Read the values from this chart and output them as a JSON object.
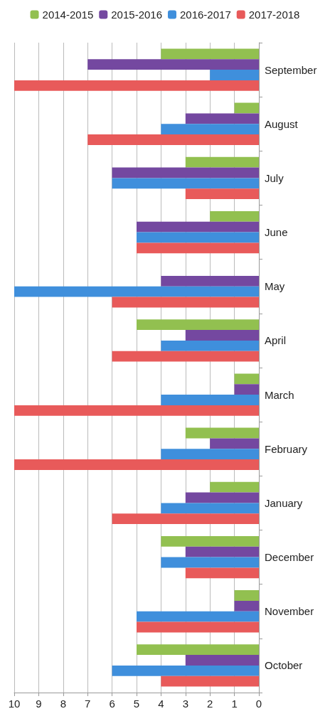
{
  "chart_data": {
    "type": "bar",
    "orientation": "horizontal",
    "categories": [
      "September",
      "August",
      "July",
      "June",
      "May",
      "April",
      "March",
      "February",
      "January",
      "December",
      "November",
      "October"
    ],
    "series": [
      {
        "name": "2014-2015",
        "color": "#92c050",
        "values": [
          4,
          1,
          3,
          2,
          0,
          5,
          1,
          3,
          2,
          4,
          1,
          5
        ]
      },
      {
        "name": "2015-2016",
        "color": "#7448a0",
        "values": [
          7,
          3,
          6,
          5,
          4,
          3,
          1,
          2,
          3,
          3,
          1,
          3
        ]
      },
      {
        "name": "2016-2017",
        "color": "#3f8fdc",
        "values": [
          2,
          4,
          6,
          5,
          10,
          4,
          4,
          4,
          4,
          4,
          5,
          6
        ]
      },
      {
        "name": "2017-2018",
        "color": "#e85a5a",
        "values": [
          10,
          7,
          3,
          5,
          6,
          6,
          10,
          10,
          6,
          3,
          5,
          4
        ]
      }
    ],
    "xlim": [
      10,
      0
    ],
    "xticks": [
      10,
      9,
      8,
      7,
      6,
      5,
      4,
      3,
      2,
      1,
      0
    ],
    "grid": "x",
    "legend": "top"
  }
}
